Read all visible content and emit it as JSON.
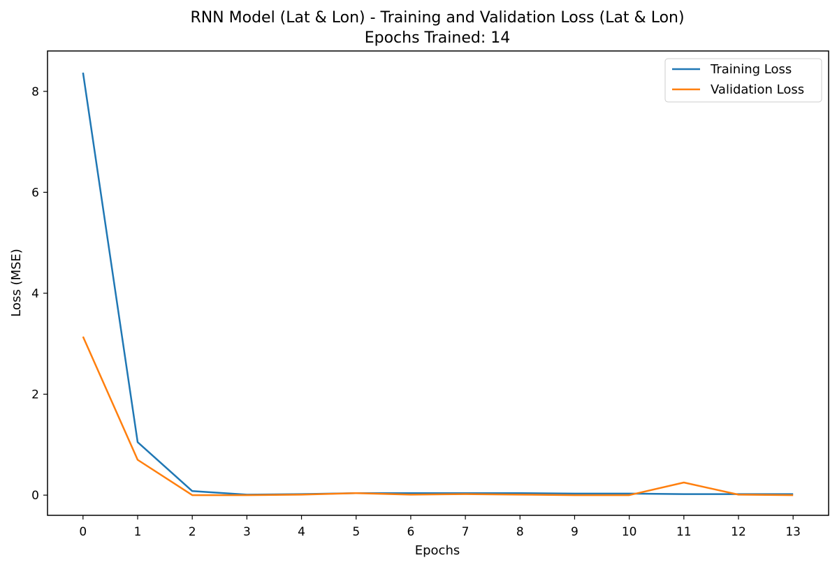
{
  "chart_data": {
    "type": "line",
    "title": "RNN Model (Lat & Lon) - Training and Validation Loss (Lat & Lon)",
    "subtitle": "Epochs Trained: 14",
    "xlabel": "Epochs",
    "ylabel": "Loss (MSE)",
    "x": [
      0,
      1,
      2,
      3,
      4,
      5,
      6,
      7,
      8,
      9,
      10,
      11,
      12,
      13
    ],
    "x_ticks": [
      "0",
      "1",
      "2",
      "3",
      "4",
      "5",
      "6",
      "7",
      "8",
      "9",
      "10",
      "11",
      "12",
      "13"
    ],
    "y_ticks": [
      "0",
      "2",
      "4",
      "6",
      "8"
    ],
    "xlim": [
      -0.65,
      13.65
    ],
    "ylim": [
      -0.4,
      8.8
    ],
    "grid": false,
    "legend_position": "top-right",
    "series": [
      {
        "name": "Training Loss",
        "color": "#1f77b4",
        "values": [
          8.37,
          1.05,
          0.08,
          0.01,
          0.02,
          0.04,
          0.04,
          0.04,
          0.04,
          0.03,
          0.03,
          0.02,
          0.02,
          0.02
        ]
      },
      {
        "name": "Validation Loss",
        "color": "#ff7f0e",
        "values": [
          3.14,
          0.7,
          0.0,
          0.0,
          0.01,
          0.04,
          0.01,
          0.02,
          0.01,
          0.0,
          0.0,
          0.25,
          0.01,
          0.0
        ]
      }
    ]
  }
}
